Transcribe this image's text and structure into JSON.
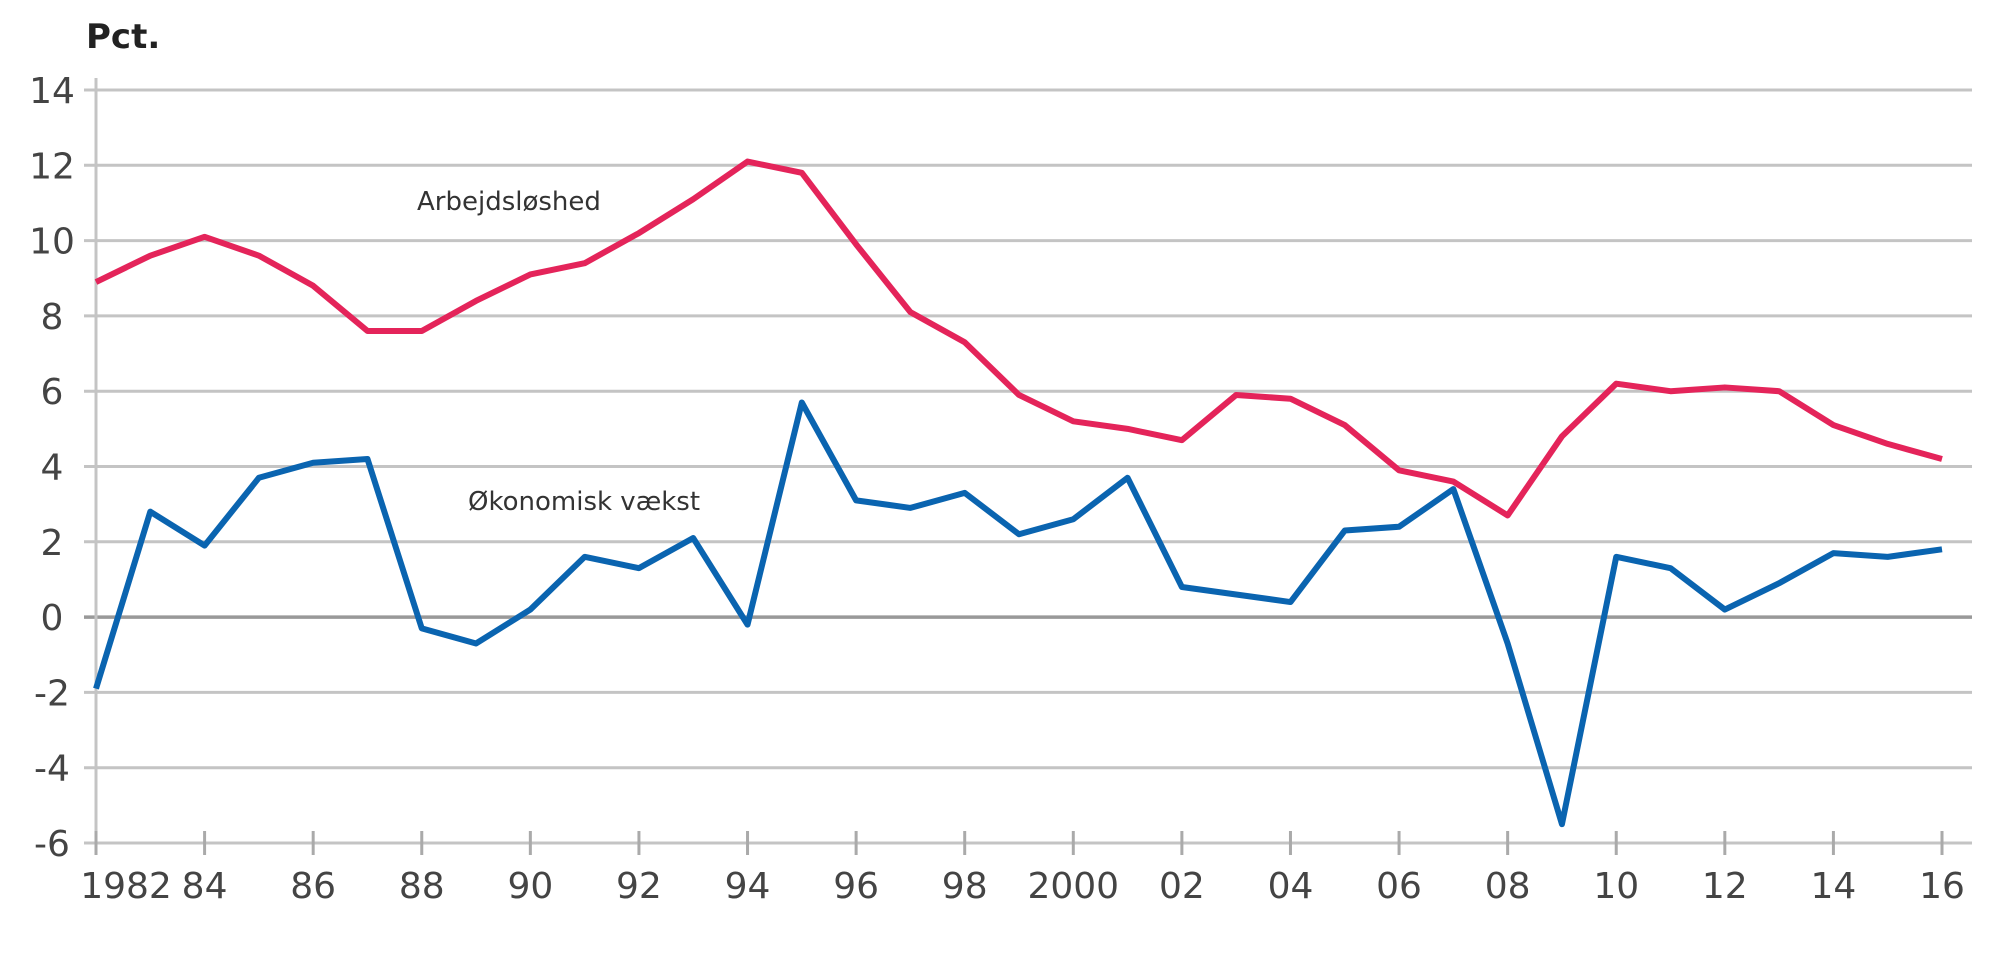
{
  "chart_data": {
    "type": "line",
    "ylabel": "Pct.",
    "ylim": [
      -6,
      14
    ],
    "yticks": [
      14,
      12,
      10,
      8,
      6,
      4,
      2,
      0,
      -2,
      -4,
      -6
    ],
    "xlim": [
      1982,
      2016
    ],
    "xtick_years": [
      1982,
      1984,
      1986,
      1988,
      1990,
      1992,
      1994,
      1996,
      1998,
      2000,
      2002,
      2004,
      2006,
      2008,
      2010,
      2012,
      2014,
      2016
    ],
    "xtick_labels": [
      "1982",
      "84",
      "86",
      "88",
      "90",
      "92",
      "94",
      "96",
      "98",
      "2000",
      "02",
      "04",
      "06",
      "08",
      "10",
      "12",
      "14",
      "16"
    ],
    "grid": true,
    "x": [
      1982,
      1983,
      1984,
      1985,
      1986,
      1987,
      1988,
      1989,
      1990,
      1991,
      1992,
      1993,
      1994,
      1995,
      1996,
      1997,
      1998,
      1999,
      2000,
      2001,
      2002,
      2003,
      2004,
      2005,
      2006,
      2007,
      2008,
      2009,
      2010,
      2011,
      2012,
      2013,
      2014,
      2015,
      2016
    ],
    "series": [
      {
        "name": "Arbejdsløshed",
        "color": "#e4245a",
        "values": [
          8.9,
          9.6,
          10.1,
          9.6,
          8.8,
          7.6,
          7.6,
          8.4,
          9.1,
          9.4,
          10.2,
          11.1,
          12.1,
          11.8,
          9.9,
          8.1,
          7.3,
          5.9,
          5.2,
          5.0,
          4.7,
          5.9,
          5.8,
          5.1,
          3.9,
          3.6,
          2.7,
          4.8,
          6.2,
          6.0,
          6.1,
          6.0,
          5.1,
          4.6,
          4.2
        ]
      },
      {
        "name": "Økonomisk vækst",
        "color": "#0a64b0",
        "values": [
          -1.9,
          2.8,
          1.9,
          3.7,
          4.1,
          4.2,
          -0.3,
          -0.7,
          0.2,
          1.6,
          1.3,
          2.1,
          -0.2,
          5.7,
          3.1,
          2.9,
          3.3,
          2.2,
          2.6,
          3.7,
          0.8,
          0.6,
          0.4,
          2.3,
          2.4,
          3.4,
          -0.7,
          -5.5,
          1.6,
          1.3,
          0.2,
          0.9,
          1.7,
          1.6,
          1.8
        ]
      }
    ]
  }
}
